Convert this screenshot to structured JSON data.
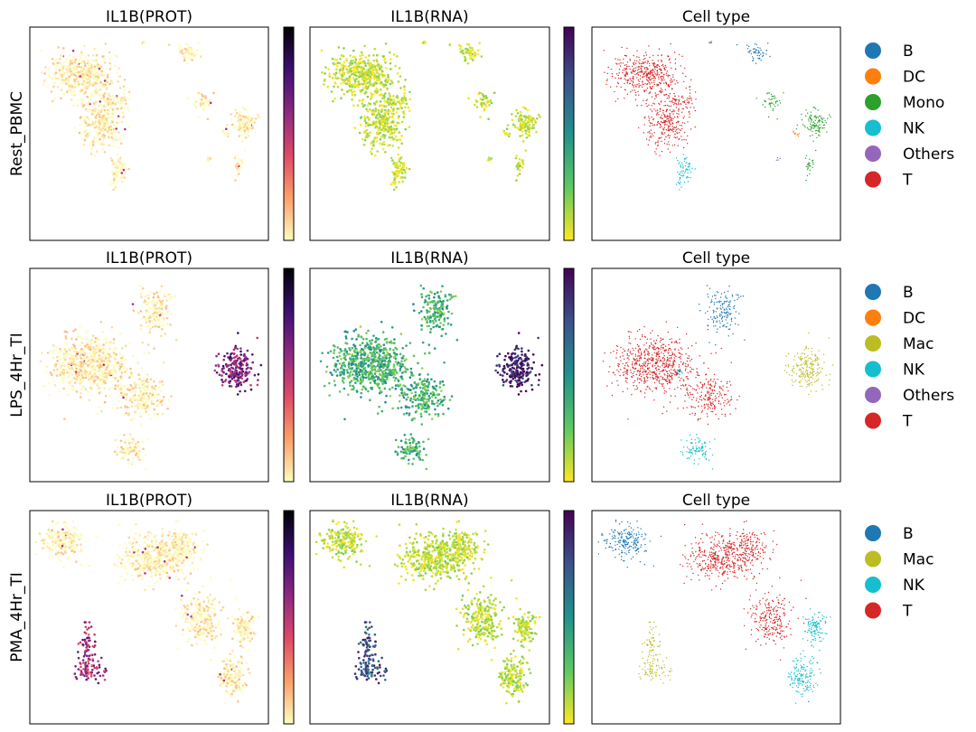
{
  "chart_data": {
    "type": "scatter",
    "colormaps": {
      "IL1B(PROT)": "magma_r",
      "IL1B(RNA)": "viridis_r"
    },
    "celltype_colors": {
      "B": "#1f77b4",
      "DC": "#ff7f0e",
      "Mono": "#2ca02c",
      "Mac": "#bcbd22",
      "NK": "#17becf",
      "Others": "#9467bd",
      "T": "#d62728"
    },
    "rows": [
      {
        "label": "Rest_PBMC",
        "panels": [
          "IL1B(PROT)",
          "IL1B(RNA)",
          "Cell type"
        ],
        "legend": [
          "B",
          "DC",
          "Mono",
          "NK",
          "Others",
          "T"
        ]
      },
      {
        "label": "LPS_4Hr_TI",
        "panels": [
          "IL1B(PROT)",
          "IL1B(RNA)",
          "Cell type"
        ],
        "legend": [
          "B",
          "DC",
          "Mac",
          "NK",
          "Others",
          "T"
        ]
      },
      {
        "label": "PMA_4Hr_TI",
        "panels": [
          "IL1B(PROT)",
          "IL1B(RNA)",
          "Cell type"
        ],
        "legend": [
          "B",
          "Mac",
          "NK",
          "T"
        ]
      }
    ]
  }
}
